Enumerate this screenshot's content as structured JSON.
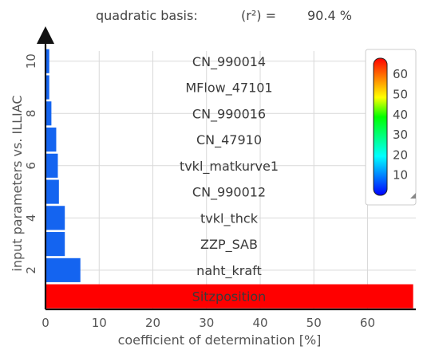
{
  "chart_data": {
    "type": "bar",
    "orientation": "horizontal",
    "title_parts": {
      "basis": "quadratic basis:",
      "r2_label": "(r²) =",
      "r2_value": "90.4 %"
    },
    "xlabel": "coefficient of determination [%]",
    "ylabel": "input parameters vs. ILLIAC",
    "xlim": [
      0,
      69
    ],
    "ylim": [
      0.5,
      11
    ],
    "xticks": [
      0,
      10,
      20,
      30,
      40,
      50,
      60
    ],
    "yticks": [
      2,
      4,
      6,
      8,
      10
    ],
    "grid": true,
    "bars": [
      {
        "label": "Sitzposition",
        "value": 68.5,
        "color": "#ff0000"
      },
      {
        "label": "naht_kraft",
        "value": 6.5,
        "color": "#1464f0"
      },
      {
        "label": "ZZP_SAB",
        "value": 3.6,
        "color": "#1464f0"
      },
      {
        "label": "tvkl_thck",
        "value": 3.6,
        "color": "#1464f0"
      },
      {
        "label": "CN_990012",
        "value": 2.5,
        "color": "#1464f0"
      },
      {
        "label": "tvkl_matkurve1",
        "value": 2.3,
        "color": "#1464f0"
      },
      {
        "label": "CN_47910",
        "value": 2.0,
        "color": "#1464f0"
      },
      {
        "label": "CN_990016",
        "value": 1.1,
        "color": "#1464f0"
      },
      {
        "label": "MFlow_47101",
        "value": 0.7,
        "color": "#1464f0"
      },
      {
        "label": "CN_990014",
        "value": 0.7,
        "color": "#1464f0"
      }
    ],
    "colorbar": {
      "ticks": [
        10,
        20,
        30,
        40,
        50,
        60
      ],
      "range": [
        0,
        68
      ],
      "colors": [
        "#0000ff",
        "#0080ff",
        "#00ffff",
        "#00ff80",
        "#00ff00",
        "#ffff00",
        "#ff8000",
        "#ff0000"
      ]
    }
  }
}
